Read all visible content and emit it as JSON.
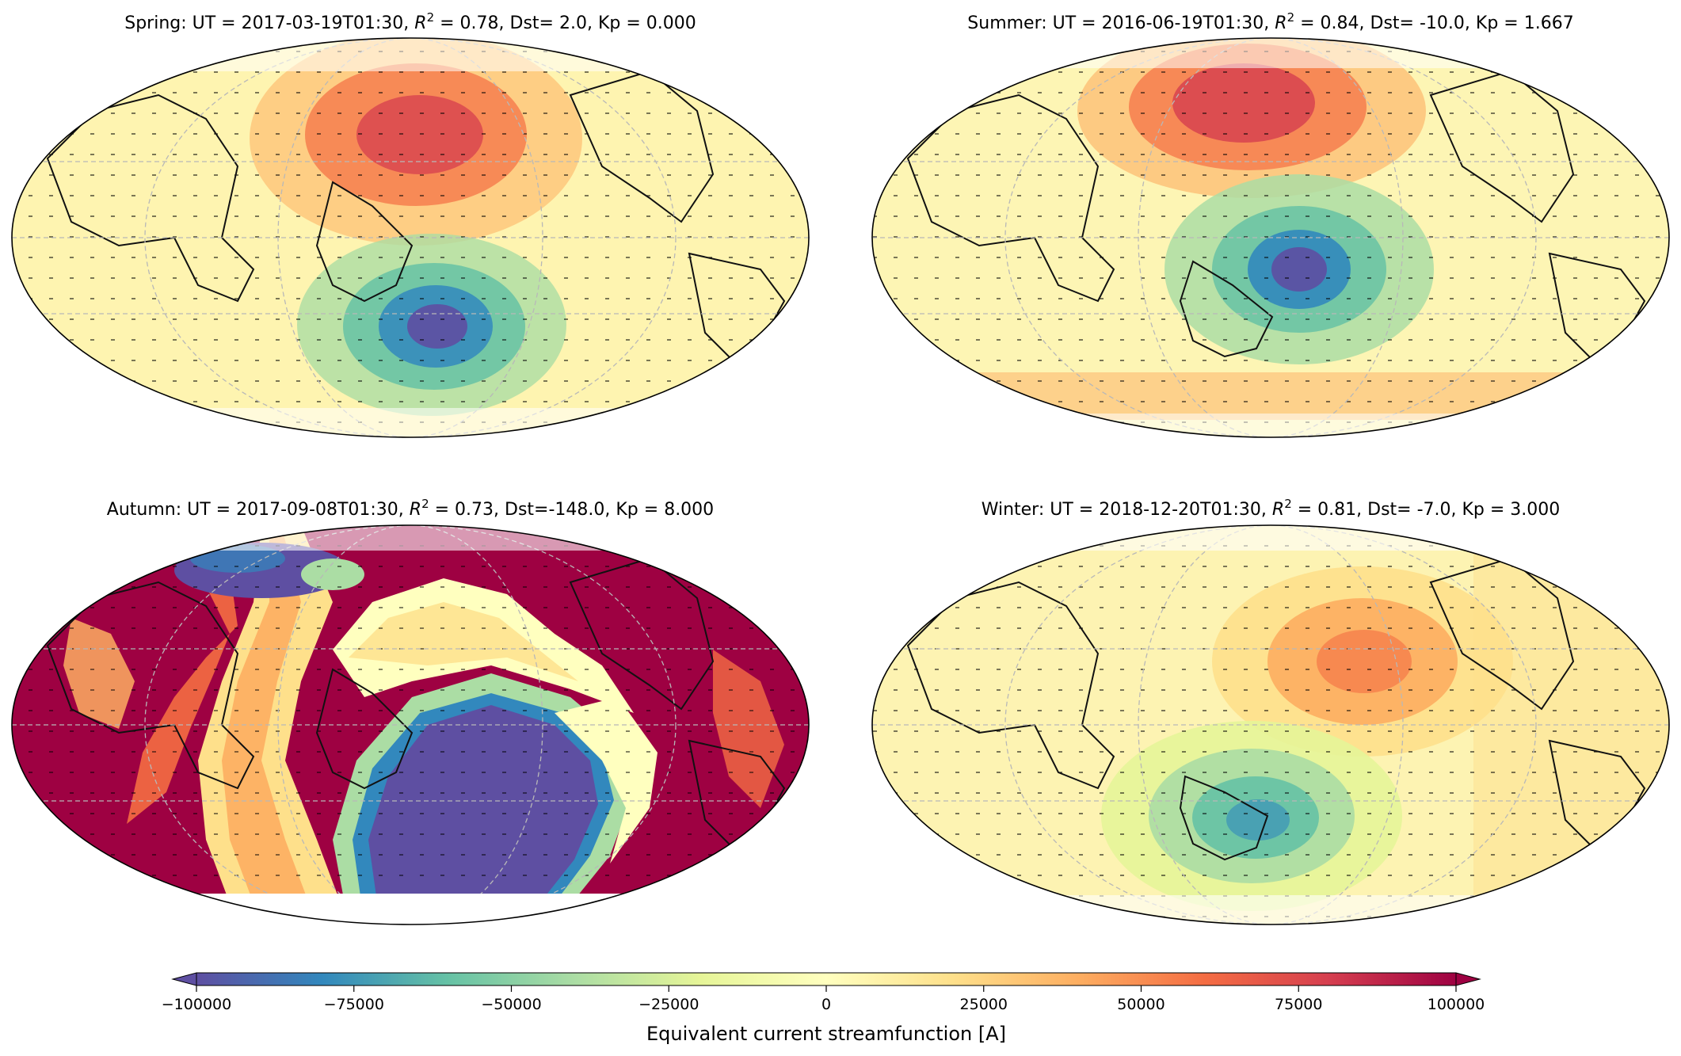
{
  "figure": {
    "colorbar_label": "Equivalent current streamfunction [A]"
  },
  "colorbar": {
    "ticks": [
      -100000,
      -75000,
      -50000,
      -25000,
      0,
      25000,
      50000,
      75000,
      100000
    ],
    "tick_labels": [
      "−100000",
      "−75000",
      "−50000",
      "−25000",
      "0",
      "25000",
      "50000",
      "75000",
      "100000"
    ],
    "colormap": "Spectral_r",
    "colors": [
      "#5e4fa2",
      "#3288bd",
      "#66c2a5",
      "#abdda4",
      "#e6f598",
      "#ffffbf",
      "#fee08b",
      "#fdae61",
      "#f46d43",
      "#d53e4f",
      "#9e0142"
    ],
    "extend": "both"
  },
  "chart_data": [
    {
      "type": "heatmap",
      "projection": "mollweide",
      "title_prefix": "Spring: UT = 2017-03-19T01:30, ",
      "title_r2": "R",
      "title_sup": "2",
      "title_suffix": " = 0.78, Dst=   2.0, Kp = 0.000",
      "season": "Spring",
      "ut": "2017-03-19T01:30",
      "r_squared": 0.78,
      "dst": 2.0,
      "kp": 0.0,
      "vmin": -100000,
      "vmax": 100000,
      "features": [
        {
          "kind": "positive-vortex",
          "lon": 143,
          "lat": 42,
          "amplitude": 65000
        },
        {
          "kind": "negative-vortex",
          "lon": 168,
          "lat": -40,
          "amplitude": -88000
        }
      ]
    },
    {
      "type": "heatmap",
      "projection": "mollweide",
      "title_prefix": "Summer: UT = 2016-06-19T01:30, ",
      "title_r2": "R",
      "title_sup": "2",
      "title_suffix": " = 0.84, Dst= -10.0, Kp = 1.667",
      "season": "Summer",
      "ut": "2016-06-19T01:30",
      "r_squared": 0.84,
      "dst": -10.0,
      "kp": 1.667,
      "vmin": -100000,
      "vmax": 100000,
      "features": [
        {
          "kind": "positive-vortex",
          "lon": 140,
          "lat": 53,
          "amplitude": 78000
        },
        {
          "kind": "negative-vortex",
          "lon": 165,
          "lat": -7,
          "amplitude": -92000
        }
      ]
    },
    {
      "type": "heatmap",
      "projection": "mollweide",
      "title_prefix": "Autumn: UT = 2017-09-08T01:30, ",
      "title_r2": "R",
      "title_sup": "2",
      "title_suffix": " = 0.73, Dst=-148.0, Kp = 8.000",
      "season": "Autumn",
      "ut": "2017-09-08T01:30",
      "r_squared": 0.73,
      "dst": -148.0,
      "kp": 8.0,
      "vmin": -100000,
      "vmax": 100000,
      "features": [
        {
          "kind": "saturated-positive",
          "region": "northern Pacific and North America",
          "amplitude": 100000
        },
        {
          "kind": "saturated-positive",
          "region": "Atlantic, Africa and southern Indian Ocean",
          "amplitude": 100000
        },
        {
          "kind": "saturated-negative",
          "region": "southern Pacific",
          "amplitude": -100000
        },
        {
          "kind": "negative-vortex",
          "region": "Scandinavia / northern Europe",
          "amplitude": -100000
        }
      ]
    },
    {
      "type": "heatmap",
      "projection": "mollweide",
      "title_prefix": "Winter: UT = 2018-12-20T01:30, ",
      "title_r2": "R",
      "title_sup": "2",
      "title_suffix": " = 0.81, Dst=  -7.0, Kp = 3.000",
      "season": "Winter",
      "ut": "2018-12-20T01:30",
      "r_squared": 0.81,
      "dst": -7.0,
      "kp": 3.0,
      "vmin": -100000,
      "vmax": 100000,
      "features": [
        {
          "kind": "positive-vortex",
          "lon": -160,
          "lat": 30,
          "amplitude": 45000
        },
        {
          "kind": "negative-vortex",
          "lon": 140,
          "lat": -35,
          "amplitude": -65000
        }
      ]
    }
  ]
}
